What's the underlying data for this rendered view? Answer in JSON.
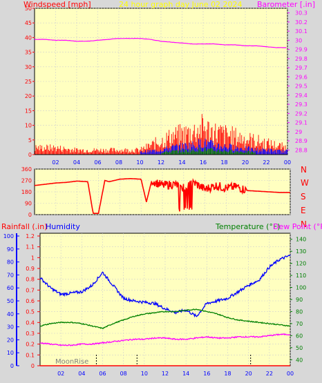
{
  "header": {
    "left_label": "Windspeed [mph]",
    "center_label": "24 hour graph day   June 02 2024",
    "right_label": "Barometer [.in]"
  },
  "direction_labels": [
    "N",
    "W",
    "S",
    "E",
    "N"
  ],
  "bottom_header": {
    "rainfall_label": "Rainfall (.in)",
    "humidity_label": "Humidity",
    "temperature_label": "Temperature (°F)",
    "dewpoint_label": "Dew Point (°F)"
  },
  "annotations": {
    "moonrise": "MoonRise"
  },
  "colors": {
    "plot_bg": "#ffffc0",
    "frame_bg": "#d8d8d8",
    "wind": "#ff0000",
    "gust_blue": "#0000ff",
    "gust_green": "#008000",
    "barometer": "#ff00ff",
    "humidity": "#0000ff",
    "temperature": "#008000",
    "dewpoint": "#ff00ff",
    "rain_axis": "#0000ff",
    "header_red": "#ff0000",
    "header_yellow": "#ffff00"
  },
  "chart_data": [
    {
      "type": "line",
      "title": "24 hour graph day   June 02 2024",
      "xlabel": "",
      "x_ticks": [
        "02",
        "04",
        "06",
        "08",
        "10",
        "12",
        "14",
        "16",
        "18",
        "20",
        "22",
        "00"
      ],
      "x_range_hours": [
        0,
        24
      ],
      "y_left": {
        "label": "Windspeed [mph]",
        "ticks": [
          0,
          5,
          10,
          15,
          20,
          25,
          30,
          35,
          40,
          45,
          50
        ],
        "range": [
          0,
          50
        ]
      },
      "y_right": {
        "label": "Barometer [.in]",
        "ticks": [
          "28.8",
          "28.9",
          "29",
          "29.1",
          "29.2",
          "29.3",
          "29.4",
          "29.5",
          "29.6",
          "29.7",
          "29.8",
          "29.9",
          "30",
          "30.1",
          "30.2",
          "30.3"
        ],
        "range": [
          28.75,
          30.35
        ]
      },
      "series": [
        {
          "name": "Barometer",
          "axis": "right",
          "x": [
            0,
            1,
            2,
            3,
            4,
            5,
            6,
            7,
            8,
            9,
            10,
            11,
            12,
            13,
            14,
            15,
            16,
            17,
            18,
            19,
            20,
            21,
            22,
            23,
            24
          ],
          "y": [
            30.01,
            30.01,
            30.0,
            30.0,
            29.99,
            29.99,
            30.0,
            30.01,
            30.02,
            30.02,
            30.02,
            30.01,
            29.99,
            29.98,
            29.97,
            29.96,
            29.96,
            29.96,
            29.95,
            29.95,
            29.94,
            29.94,
            29.93,
            29.92,
            29.92
          ]
        },
        {
          "name": "Windspeed",
          "axis": "left",
          "x": [
            0,
            2,
            4,
            6,
            8,
            10,
            11,
            12,
            13,
            14,
            15,
            16,
            17,
            18,
            19,
            20,
            21,
            22,
            23,
            24
          ],
          "y": [
            1,
            1.5,
            1,
            1,
            1,
            1,
            1.5,
            2,
            3,
            3.5,
            4,
            5,
            4,
            3.5,
            3,
            2.5,
            2,
            2,
            1.5,
            1.5
          ]
        },
        {
          "name": "Gust",
          "axis": "left",
          "x": [
            0,
            2,
            4,
            6,
            8,
            10,
            11,
            12,
            13,
            14,
            15,
            16,
            17,
            18,
            19,
            20,
            21,
            22,
            23,
            24
          ],
          "y": [
            3,
            3,
            2,
            2,
            2,
            2,
            4,
            6,
            8,
            9,
            10,
            12,
            10,
            9,
            8,
            7,
            6,
            5,
            4,
            3
          ]
        }
      ]
    },
    {
      "type": "line",
      "title": "",
      "y_left": {
        "label": "",
        "ticks": [
          0,
          90,
          180,
          270,
          360
        ],
        "range": [
          0,
          360
        ]
      },
      "y_right_labels": [
        "N",
        "W",
        "S",
        "E",
        "N"
      ],
      "series": [
        {
          "name": "Wind direction",
          "axis": "left",
          "x": [
            0,
            1,
            2,
            3,
            4,
            5,
            5.5,
            6,
            6.6,
            7,
            8,
            9,
            10,
            10.5,
            11,
            12,
            13,
            14,
            15,
            16,
            17,
            18,
            19,
            20,
            21,
            22,
            23,
            24
          ],
          "y": [
            230,
            240,
            250,
            255,
            265,
            260,
            10,
            10,
            270,
            260,
            280,
            285,
            280,
            100,
            270,
            230,
            240,
            220,
            250,
            200,
            230,
            210,
            220,
            190,
            185,
            180,
            175,
            175
          ]
        }
      ]
    },
    {
      "type": "line",
      "title": "",
      "y_far_left": {
        "label": "Humidity",
        "ticks": [
          0,
          10,
          20,
          30,
          40,
          50,
          60,
          70,
          80,
          90,
          100
        ],
        "range": [
          0,
          100
        ]
      },
      "y_left": {
        "label": "Rainfall (.in)",
        "ticks": [
          0,
          0.1,
          0.2,
          0.3,
          0.4,
          0.5,
          0.6,
          0.7,
          0.8,
          0.9,
          1,
          1.1,
          1.2
        ],
        "range": [
          0,
          1.2
        ]
      },
      "y_right": {
        "label": "Temperature (°F)",
        "ticks": [
          40,
          50,
          60,
          70,
          80,
          90,
          100,
          110,
          120,
          130,
          140
        ],
        "range": [
          35,
          145
        ]
      },
      "series": [
        {
          "name": "Humidity",
          "axis": "far_left",
          "x": [
            0,
            1,
            2,
            3,
            4,
            5,
            6,
            7,
            8,
            9,
            10,
            11,
            12,
            13,
            14,
            15,
            16,
            17,
            18,
            19,
            20,
            21,
            22,
            23,
            24
          ],
          "y": [
            68,
            60,
            55,
            56,
            57,
            62,
            72,
            62,
            52,
            50,
            49,
            48,
            44,
            41,
            43,
            38,
            48,
            50,
            52,
            57,
            62,
            66,
            76,
            82,
            85
          ]
        },
        {
          "name": "Temperature",
          "axis": "right",
          "x": [
            0,
            1,
            2,
            3,
            4,
            5,
            6,
            7,
            8,
            9,
            10,
            11,
            12,
            13,
            14,
            15,
            16,
            17,
            18,
            19,
            20,
            21,
            22,
            23,
            24
          ],
          "y": [
            68,
            70,
            71,
            71,
            70,
            68,
            66,
            70,
            73,
            76,
            78,
            79,
            80,
            80,
            81,
            82,
            80,
            78,
            75,
            73,
            72,
            71,
            70,
            69,
            68
          ]
        },
        {
          "name": "Dew Point",
          "axis": "right",
          "x": [
            0,
            1,
            2,
            3,
            4,
            5,
            6,
            7,
            8,
            9,
            10,
            11,
            12,
            13,
            14,
            15,
            16,
            17,
            18,
            19,
            20,
            21,
            22,
            23,
            24
          ],
          "y": [
            54,
            53,
            52,
            52,
            53,
            53,
            54,
            55,
            56,
            57,
            57,
            58,
            58,
            57,
            57,
            58,
            59,
            58,
            58,
            59,
            59,
            59,
            60,
            61,
            61
          ]
        },
        {
          "name": "Rainfall",
          "axis": "left",
          "x": [
            0,
            24
          ],
          "y": [
            0,
            0
          ]
        }
      ]
    }
  ]
}
